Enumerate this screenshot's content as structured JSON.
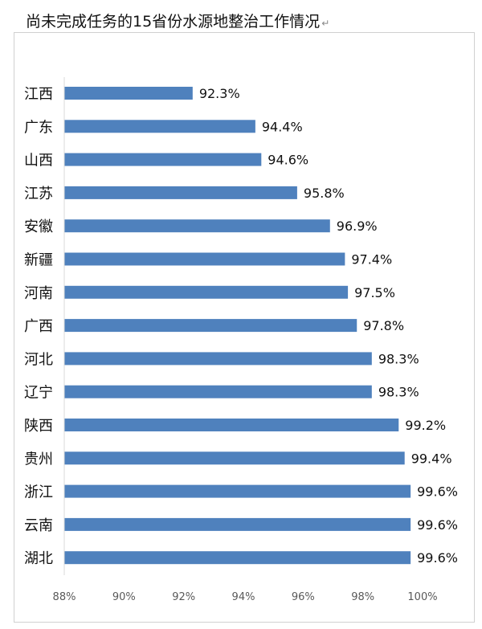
{
  "chart_data": {
    "type": "bar",
    "orientation": "horizontal",
    "title": "尚未完成任务的15省份水源地整治工作情况",
    "categories": [
      "江西",
      "广东",
      "山西",
      "江苏",
      "安徽",
      "新疆",
      "河南",
      "广西",
      "河北",
      "辽宁",
      "陕西",
      "贵州",
      "浙江",
      "云南",
      "湖北"
    ],
    "values": [
      92.3,
      94.4,
      94.6,
      95.8,
      96.9,
      97.4,
      97.5,
      97.8,
      98.3,
      98.3,
      99.2,
      99.4,
      99.6,
      99.6,
      99.6
    ],
    "data_labels": [
      "92.3%",
      "94.4%",
      "94.6%",
      "95.8%",
      "96.9%",
      "97.4%",
      "97.5%",
      "97.8%",
      "98.3%",
      "98.3%",
      "99.2%",
      "99.4%",
      "99.6%",
      "99.6%",
      "99.6%"
    ],
    "xlim": [
      88,
      100
    ],
    "x_ticks": [
      88,
      90,
      92,
      94,
      96,
      98,
      100
    ],
    "x_tick_labels": [
      "88%",
      "90%",
      "92%",
      "94%",
      "96%",
      "98%",
      "100%"
    ],
    "grid": false,
    "legend": "none",
    "bar_color": "#4f81bd",
    "xlabel": "",
    "ylabel": ""
  }
}
